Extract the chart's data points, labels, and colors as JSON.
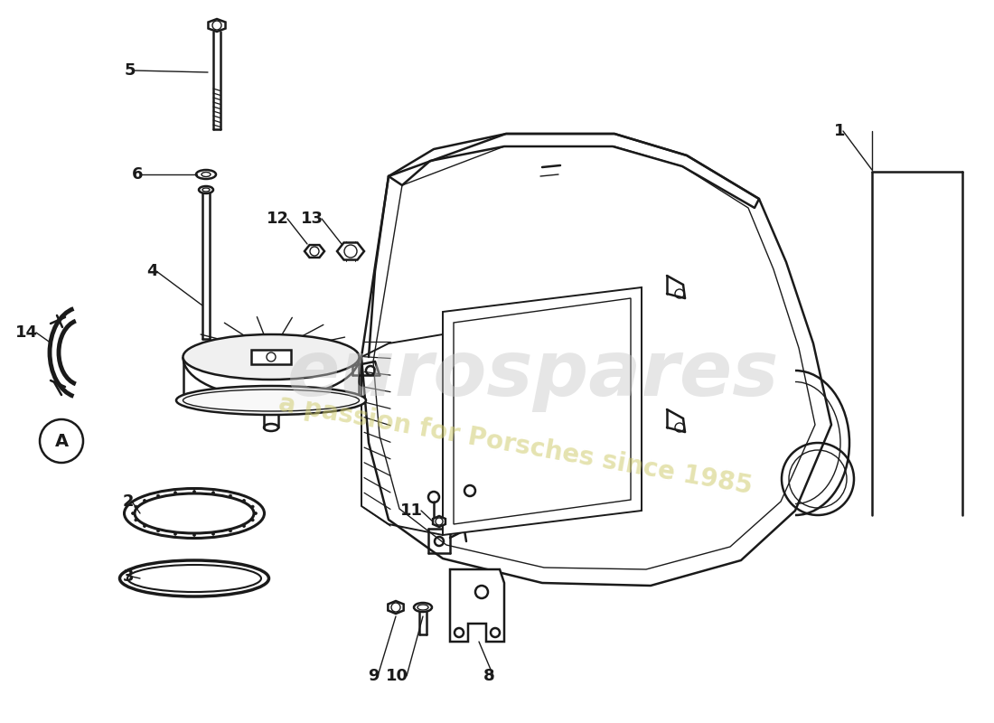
{
  "background_color": "#ffffff",
  "line_color": "#1a1a1a",
  "watermark1": "eurospares",
  "watermark2": "a passion for Porsches since 1985",
  "label_fontsize": 13
}
